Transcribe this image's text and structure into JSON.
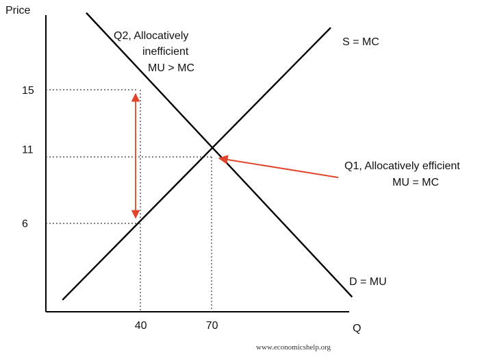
{
  "chart_data": {
    "type": "line",
    "title": "",
    "xlabel": "Q",
    "ylabel": "Price",
    "grid": false,
    "x_ticks": [
      40,
      70
    ],
    "y_ticks": [
      6,
      11,
      15
    ],
    "series": [
      {
        "name": "S = MC",
        "color": "#000000",
        "points": [
          [
            7,
            0.8
          ],
          [
            120,
            19.2
          ]
        ]
      },
      {
        "name": "D = MU",
        "color": "#000000",
        "points": [
          [
            17,
            20.2
          ],
          [
            129,
            1.0
          ]
        ]
      }
    ],
    "annotations": {
      "q2": [
        "Q2, Allocatively",
        "inefficient",
        "MU > MC"
      ],
      "q1": [
        "Q1, Allocatively efficient",
        "MU = MC"
      ]
    },
    "arrow_color": "#e0442a",
    "credit": "www.economicshelp.org"
  }
}
